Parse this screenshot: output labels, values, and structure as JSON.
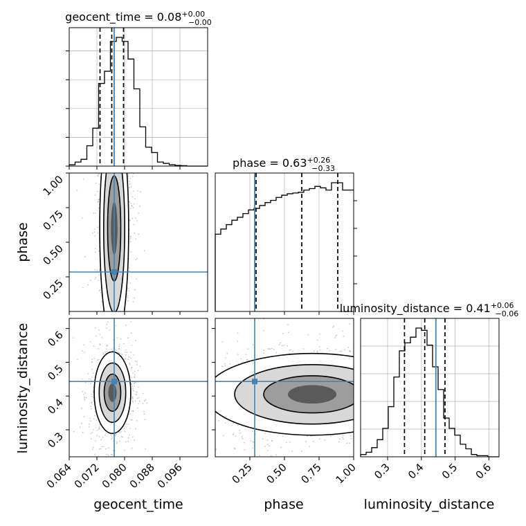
{
  "colors": {
    "truth": "#4682b4",
    "hist": "#000000",
    "grid": "#b0b0b0"
  },
  "chart_data": {
    "type": "corner",
    "params": [
      "geocent_time",
      "phase",
      "luminosity_distance"
    ],
    "axis_labels": [
      "geocent_time",
      "phase",
      "luminosity_distance"
    ],
    "ranges": [
      [
        0.064,
        0.104
      ],
      [
        0.0,
        1.0
      ],
      [
        0.22,
        0.63
      ]
    ],
    "ticks": [
      [
        0.064,
        0.072,
        0.08,
        0.088,
        0.096
      ],
      [
        0.25,
        0.5,
        0.75,
        1.0
      ],
      [
        0.3,
        0.4,
        0.5,
        0.6
      ]
    ],
    "tick_labels": [
      [
        "0.064",
        "0.072",
        "0.080",
        "0.088",
        "0.096"
      ],
      [
        "0.25",
        "0.50",
        "0.75",
        "1.00"
      ],
      [
        "0.3",
        "0.4",
        "0.5",
        "0.6"
      ]
    ],
    "titles": [
      {
        "name": "geocent_time",
        "median": "0.08",
        "plus": "+0.00",
        "minus": "−0.00"
      },
      {
        "name": "phase",
        "median": "0.63",
        "plus": "+0.26",
        "minus": "−0.33"
      },
      {
        "name": "luminosity_distance",
        "median": "0.41",
        "plus": "+0.06",
        "minus": "−0.06"
      }
    ],
    "truths": [
      0.077,
      0.285,
      0.443
    ],
    "quantiles": [
      [
        0.0729,
        0.0763,
        0.0797
      ],
      [
        0.295,
        0.625,
        0.885
      ],
      [
        0.35,
        0.41,
        0.47
      ]
    ],
    "histograms": [
      {
        "edges_start": 0.064,
        "bin_width": 0.0017,
        "counts": [
          1,
          3,
          5,
          15,
          28,
          61,
          70,
          92,
          95,
          92,
          79,
          57,
          29,
          14,
          10,
          3,
          2,
          1,
          0.5,
          0.3,
          0,
          0,
          0,
          0
        ]
      },
      {
        "edges_start": 0.0,
        "bin_width": 0.04,
        "counts": [
          105,
          112,
          118,
          124,
          128,
          133,
          138,
          140,
          144,
          148,
          151,
          155,
          158,
          160,
          161,
          162,
          165,
          167,
          170,
          168,
          165,
          175,
          175,
          165,
          165
        ]
      },
      {
        "edges_start": 0.22,
        "bin_width": 0.0164,
        "counts": [
          2,
          4,
          8,
          15,
          25,
          44,
          70,
          93,
          100,
          105,
          113,
          111,
          98,
          79,
          59,
          34,
          25,
          19,
          11,
          7,
          2,
          1,
          1,
          0,
          0
        ]
      }
    ],
    "pairs": [
      {
        "x": 0,
        "y": 1,
        "cx": 0.077,
        "cy": 0.6,
        "sx": 0.0019,
        "sy": 0.38,
        "rho": 0.0
      },
      {
        "x": 0,
        "y": 2,
        "cx": 0.0765,
        "cy": 0.41,
        "sx": 0.0024,
        "sy": 0.055,
        "rho": 0.0
      },
      {
        "x": 1,
        "y": 2,
        "cx": 0.7,
        "cy": 0.405,
        "sx": 0.35,
        "sy": 0.055,
        "rho": 0.0
      }
    ],
    "grid": true
  }
}
